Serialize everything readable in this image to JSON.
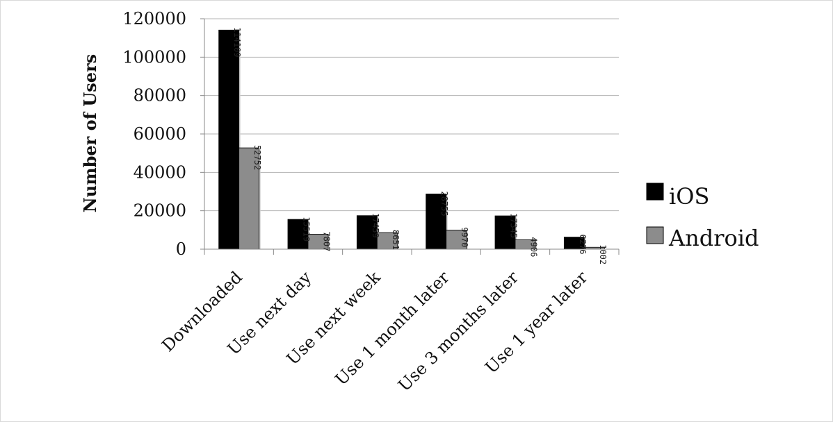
{
  "chart_data": {
    "type": "bar",
    "title": "",
    "xlabel": "",
    "ylabel": "Number of Users",
    "ylim": [
      0,
      120000
    ],
    "yticks": [
      0,
      20000,
      40000,
      60000,
      80000,
      100000,
      120000
    ],
    "grid": true,
    "legend_position": "right",
    "categories": [
      "Downloaded",
      "Use next day",
      "Use next week",
      "Use 1 month later",
      "Use 3 months later",
      "Use 1 year later"
    ],
    "series": [
      {
        "name": "iOS",
        "color": "#000000",
        "values": [
          114109,
          15519,
          17459,
          28755,
          17345,
          6276
        ]
      },
      {
        "name": "Android",
        "color": "#8c8c8c",
        "values": [
          52752,
          7807,
          8651,
          9970,
          4906,
          1002
        ]
      }
    ]
  }
}
